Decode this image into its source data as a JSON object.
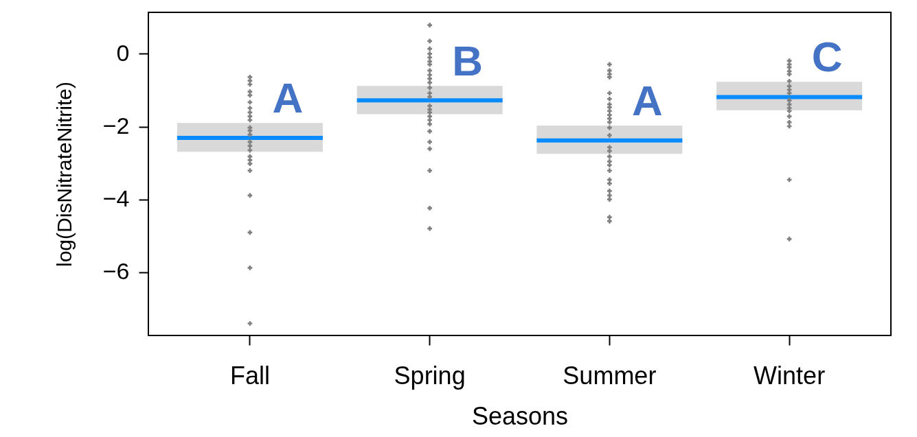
{
  "chart_data": {
    "type": "scatter",
    "xlabel": "Seasons",
    "ylabel": "log(DisNitrateNitrite)",
    "categories": [
      "Fall",
      "Spring",
      "Summer",
      "Winter"
    ],
    "ylim": [
      -7.74,
      1.14
    ],
    "yticks": [
      -6,
      -4,
      -2,
      0
    ],
    "marker": "cross",
    "series": [
      {
        "type": "box",
        "color": "#d9d9d9",
        "boxes": [
          {
            "low": -2.69,
            "q1": -2.69,
            "median": -2.31,
            "q3": -1.9,
            "high": -1.9
          },
          {
            "low": -1.66,
            "q1": -1.66,
            "median": -1.28,
            "q3": -0.88,
            "high": -0.88
          },
          {
            "low": -2.75,
            "q1": -2.75,
            "median": -2.38,
            "q3": -1.97,
            "high": -1.97
          },
          {
            "low": -1.55,
            "q1": -1.55,
            "median": -1.19,
            "q3": -0.77,
            "high": -0.77
          }
        ]
      },
      {
        "color": "#808080",
        "x": [
          "Fall",
          "Fall",
          "Fall",
          "Fall",
          "Fall",
          "Fall",
          "Fall",
          "Fall",
          "Fall",
          "Fall",
          "Fall",
          "Fall",
          "Fall",
          "Fall",
          "Fall",
          "Fall",
          "Fall",
          "Fall",
          "Fall",
          "Fall",
          "Fall",
          "Fall",
          "Fall",
          "Fall"
        ],
        "values": [
          -0.64,
          -0.74,
          -1.14,
          -1.33,
          -1.49,
          -1.61,
          -1.72,
          -1.82,
          -2.03,
          -2.11,
          -2.22,
          -2.42,
          -2.53,
          -2.65,
          -2.82,
          -2.92,
          -3.02,
          -3.21,
          -3.89,
          -4.91,
          -5.88,
          -7.41,
          -1.04,
          -0.84
        ]
      },
      {
        "color": "#808080",
        "x": [
          "Spring",
          "Spring",
          "Spring",
          "Spring",
          "Spring",
          "Spring",
          "Spring",
          "Spring",
          "Spring",
          "Spring",
          "Spring",
          "Spring",
          "Spring",
          "Spring",
          "Spring",
          "Spring",
          "Spring",
          "Spring",
          "Spring",
          "Spring",
          "Spring",
          "Spring",
          "Spring",
          "Spring",
          "Spring",
          "Spring"
        ],
        "values": [
          0.79,
          0.35,
          0.14,
          0.0,
          -0.21,
          -0.29,
          -0.46,
          -0.58,
          -0.68,
          -0.79,
          -0.93,
          -1.08,
          -1.18,
          -1.43,
          -1.53,
          -1.61,
          -1.72,
          -1.82,
          -1.93,
          -2.13,
          -2.42,
          -2.61,
          -3.21,
          -4.24,
          -4.8,
          -0.1
        ]
      },
      {
        "color": "#808080",
        "x": [
          "Summer",
          "Summer",
          "Summer",
          "Summer",
          "Summer",
          "Summer",
          "Summer",
          "Summer",
          "Summer",
          "Summer",
          "Summer",
          "Summer",
          "Summer",
          "Summer",
          "Summer",
          "Summer",
          "Summer",
          "Summer",
          "Summer",
          "Summer",
          "Summer",
          "Summer",
          "Summer",
          "Summer",
          "Summer",
          "Summer",
          "Summer"
        ],
        "values": [
          -0.29,
          -0.46,
          -0.56,
          -0.64,
          -1.08,
          -1.24,
          -1.39,
          -1.57,
          -1.68,
          -1.78,
          -1.88,
          -2.03,
          -2.24,
          -2.57,
          -2.67,
          -2.82,
          -2.96,
          -3.06,
          -3.21,
          -3.46,
          -3.56,
          -3.77,
          -3.89,
          -4.0,
          -4.49,
          -4.6,
          -1.47
        ]
      },
      {
        "color": "#808080",
        "x": [
          "Winter",
          "Winter",
          "Winter",
          "Winter",
          "Winter",
          "Winter",
          "Winter",
          "Winter",
          "Winter",
          "Winter",
          "Winter",
          "Winter",
          "Winter",
          "Winter",
          "Winter",
          "Winter",
          "Winter",
          "Winter"
        ],
        "values": [
          -0.19,
          -0.29,
          -0.37,
          -0.48,
          -0.56,
          -0.75,
          -0.89,
          -0.99,
          -1.08,
          -1.28,
          -1.39,
          -1.49,
          -1.57,
          -1.72,
          -1.88,
          -1.99,
          -3.46,
          -5.09
        ]
      }
    ],
    "annotations": [
      "A",
      "B",
      "A",
      "C"
    ]
  }
}
